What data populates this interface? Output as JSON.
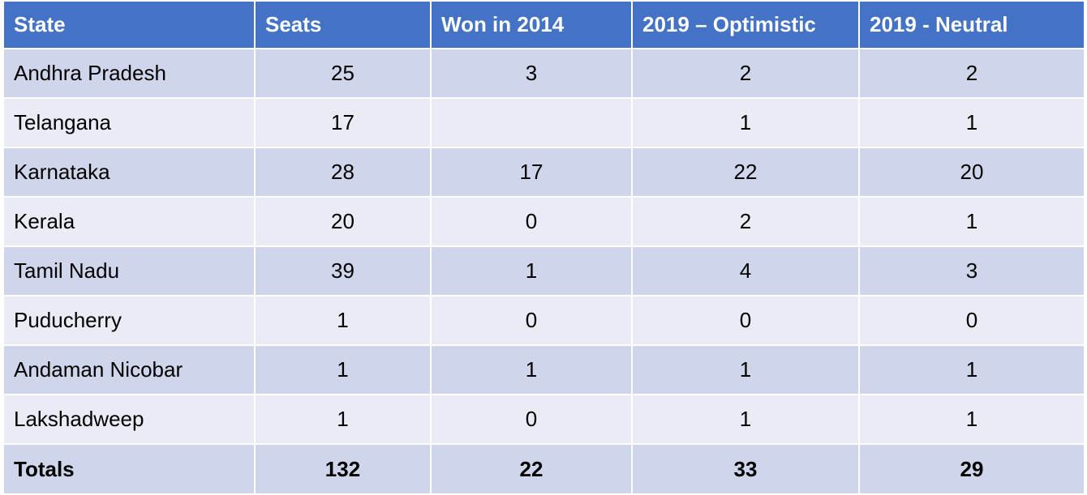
{
  "headers": [
    "State",
    "Seats",
    "Won in 2014",
    "2019 – Optimistic",
    "2019 - Neutral"
  ],
  "rows": [
    {
      "state": "Andhra Pradesh",
      "seats": "25",
      "won_2014": "3",
      "optimistic": "2",
      "neutral": "2"
    },
    {
      "state": "Telangana",
      "seats": "17",
      "won_2014": "",
      "optimistic": "1",
      "neutral": "1"
    },
    {
      "state": "Karnataka",
      "seats": "28",
      "won_2014": "17",
      "optimistic": "22",
      "neutral": "20"
    },
    {
      "state": "Kerala",
      "seats": "20",
      "won_2014": "0",
      "optimistic": "2",
      "neutral": "1"
    },
    {
      "state": "Tamil Nadu",
      "seats": "39",
      "won_2014": "1",
      "optimistic": "4",
      "neutral": "3"
    },
    {
      "state": "Puducherry",
      "seats": "1",
      "won_2014": "0",
      "optimistic": "0",
      "neutral": "0"
    },
    {
      "state": "Andaman Nicobar",
      "seats": "1",
      "won_2014": "1",
      "optimistic": "1",
      "neutral": "1"
    },
    {
      "state": "Lakshadweep",
      "seats": "1",
      "won_2014": "0",
      "optimistic": "1",
      "neutral": "1"
    }
  ],
  "totals": {
    "label": "Totals",
    "seats": "132",
    "won_2014": "22",
    "optimistic": "33",
    "neutral": "29"
  },
  "colors": {
    "header_bg": "#4472c4",
    "row_dark": "#cfd5ea",
    "row_light": "#e9ebf5"
  }
}
